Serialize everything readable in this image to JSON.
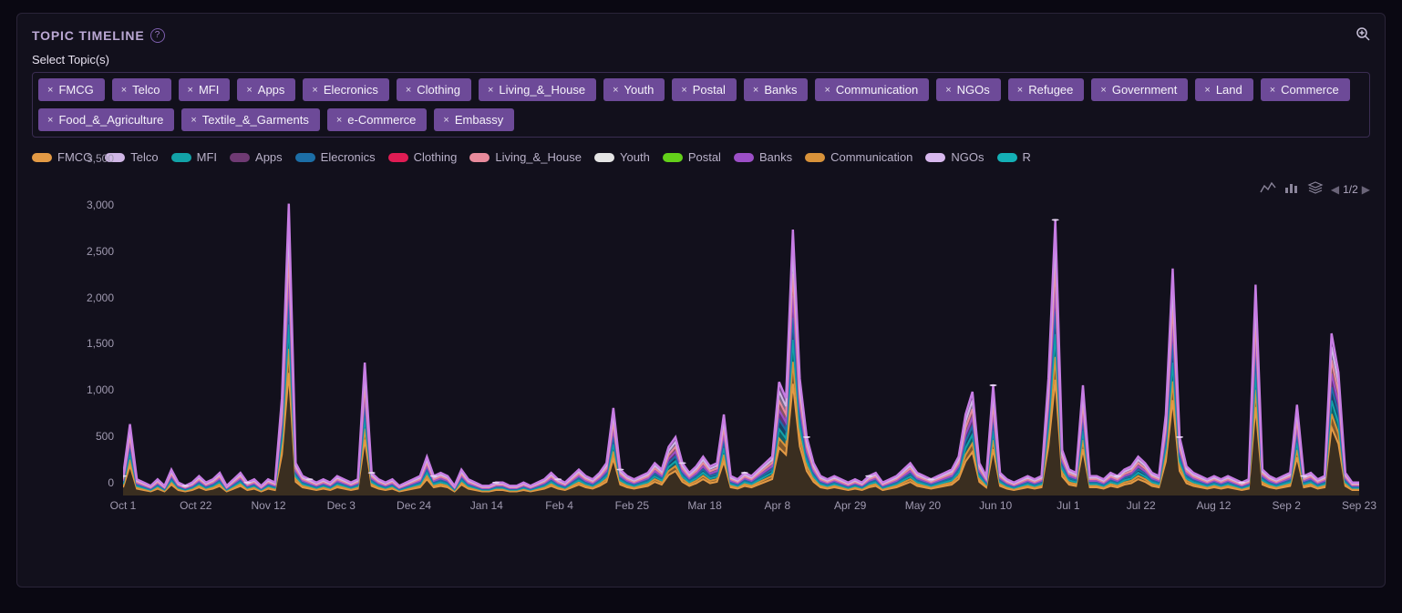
{
  "title": "TOPIC TIMELINE",
  "subtitle": "Select Topic(s)",
  "colors": {
    "background": "#0a0812",
    "panel": "#12101c",
    "panel_border": "#2a2438",
    "text": "#d0c8e0",
    "axis_text": "#a09ab0",
    "chip_bg": "#6d4a98",
    "chip_text": "#f5f2fa"
  },
  "topics": [
    {
      "label": "FMCG",
      "color": "#e39a45"
    },
    {
      "label": "Telco",
      "color": "#d0b6e6"
    },
    {
      "label": "MFI",
      "color": "#12a3a8"
    },
    {
      "label": "Apps",
      "color": "#6f3a73"
    },
    {
      "label": "Elecronics",
      "color": "#1c6ea6"
    },
    {
      "label": "Clothing",
      "color": "#e01c54"
    },
    {
      "label": "Living_&_House",
      "color": "#e88a9c"
    },
    {
      "label": "Youth",
      "color": "#e4e4e4"
    },
    {
      "label": "Postal",
      "color": "#63d01a"
    },
    {
      "label": "Banks",
      "color": "#9c4fc7"
    },
    {
      "label": "Communication",
      "color": "#d8923a"
    },
    {
      "label": "NGOs",
      "color": "#d8b8ee"
    },
    {
      "label": "R",
      "color": "#14b0b6"
    }
  ],
  "extra_chips": [
    "Refugee",
    "Government",
    "Land",
    "Commerce",
    "Food_&_Agriculture",
    "Textile_&_Garments",
    "e-Commerce",
    "Embassy"
  ],
  "pager": {
    "page": 1,
    "total": 2,
    "label": "1/2"
  },
  "chart": {
    "type": "stacked-area-line",
    "y": {
      "min": 0,
      "max": 3500,
      "step": 500,
      "ticks": [
        0,
        500,
        1000,
        1500,
        2000,
        2500,
        3000,
        3500
      ],
      "tick_labels": [
        "0",
        "500",
        "1,000",
        "1,500",
        "2,000",
        "2,500",
        "3,000",
        "3,500"
      ]
    },
    "x": {
      "labels": [
        "Oct 1",
        "Oct 22",
        "Nov 12",
        "Dec 3",
        "Dec 24",
        "Jan 14",
        "Feb 4",
        "Feb 25",
        "Mar 18",
        "Apr 8",
        "Apr 29",
        "May 20",
        "Jun 10",
        "Jul 1",
        "Jul 22",
        "Aug 12",
        "Sep 2",
        "Sep 23"
      ]
    },
    "n_points": 180,
    "base_fill_color": "#3a2e20",
    "top_line_color": "#c77de4",
    "ribbon_colors": [
      "#e39a45",
      "#d8923a",
      "#12a3a8",
      "#1c6ea6",
      "#9c4fc7",
      "#e88a9c",
      "#d0b6e6",
      "#c77de4"
    ],
    "top_series": [
      0.06,
      0.22,
      0.05,
      0.04,
      0.03,
      0.05,
      0.03,
      0.08,
      0.04,
      0.03,
      0.04,
      0.06,
      0.04,
      0.05,
      0.07,
      0.03,
      0.05,
      0.07,
      0.04,
      0.05,
      0.03,
      0.05,
      0.04,
      0.3,
      0.9,
      0.1,
      0.06,
      0.05,
      0.04,
      0.05,
      0.04,
      0.06,
      0.05,
      0.04,
      0.05,
      0.41,
      0.07,
      0.05,
      0.04,
      0.05,
      0.03,
      0.04,
      0.05,
      0.06,
      0.12,
      0.06,
      0.07,
      0.06,
      0.03,
      0.08,
      0.05,
      0.04,
      0.03,
      0.03,
      0.04,
      0.04,
      0.03,
      0.03,
      0.04,
      0.03,
      0.04,
      0.05,
      0.07,
      0.05,
      0.04,
      0.06,
      0.08,
      0.06,
      0.05,
      0.07,
      0.1,
      0.27,
      0.08,
      0.06,
      0.05,
      0.06,
      0.07,
      0.1,
      0.08,
      0.15,
      0.18,
      0.1,
      0.07,
      0.09,
      0.12,
      0.09,
      0.1,
      0.25,
      0.06,
      0.05,
      0.07,
      0.06,
      0.08,
      0.1,
      0.12,
      0.35,
      0.3,
      0.82,
      0.36,
      0.18,
      0.1,
      0.06,
      0.05,
      0.06,
      0.05,
      0.04,
      0.05,
      0.04,
      0.06,
      0.07,
      0.04,
      0.05,
      0.06,
      0.08,
      0.1,
      0.07,
      0.06,
      0.05,
      0.06,
      0.07,
      0.08,
      0.12,
      0.25,
      0.32,
      0.1,
      0.06,
      0.34,
      0.07,
      0.05,
      0.04,
      0.05,
      0.06,
      0.05,
      0.06,
      0.36,
      0.85,
      0.14,
      0.08,
      0.07,
      0.34,
      0.06,
      0.06,
      0.05,
      0.07,
      0.06,
      0.08,
      0.09,
      0.12,
      0.1,
      0.07,
      0.06,
      0.25,
      0.7,
      0.18,
      0.09,
      0.07,
      0.06,
      0.05,
      0.06,
      0.05,
      0.06,
      0.05,
      0.04,
      0.05,
      0.65,
      0.08,
      0.06,
      0.05,
      0.06,
      0.07,
      0.28,
      0.06,
      0.07,
      0.05,
      0.06,
      0.5,
      0.38,
      0.07,
      0.04,
      0.04
    ],
    "base_ratio": 0.42
  }
}
